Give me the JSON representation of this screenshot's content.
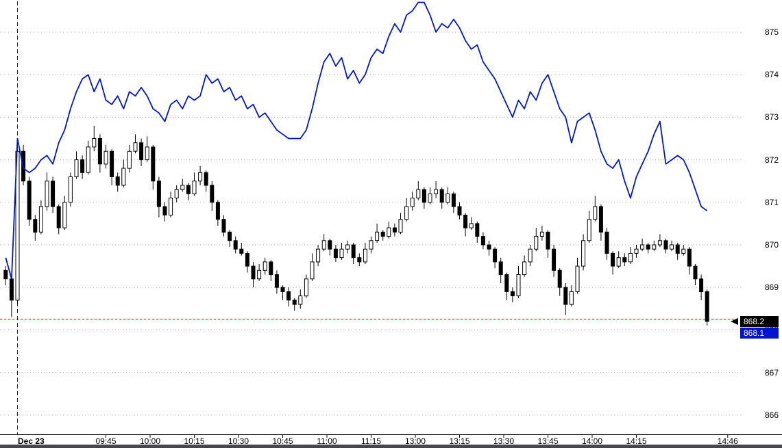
{
  "chart_data": {
    "type": "candlestick",
    "title": "",
    "x_axis": {
      "date_label": "Dec 23",
      "tick_labels": [
        "09:45",
        "10:00",
        "10:15",
        "10:30",
        "10:45",
        "11:00",
        "11:15",
        "13:00",
        "13:15",
        "13:30",
        "13:45",
        "14:00",
        "14:15",
        "14:46"
      ],
      "start_time": "09:10",
      "session_open_time": "09:15",
      "midday_break": [
        "11:30",
        "13:00"
      ]
    },
    "y_axis": {
      "tick_labels": [
        875,
        874,
        873,
        872,
        871,
        870,
        869,
        868,
        867,
        866
      ],
      "min": 865.5,
      "max": 875.8
    },
    "grid": true,
    "bar_interval_minutes": 2,
    "reference_dashed_price": 868.25,
    "quote": {
      "last": "868.2",
      "secondary": "868.1"
    },
    "colors": {
      "line_series": "#0018cc",
      "candle_up": "#ffffff",
      "candle_down": "#000000",
      "reference_line": "#e00000",
      "last_tag_bg": "#000000",
      "secondary_tag_bg": "#0014cf"
    },
    "series": [
      {
        "name": "candles",
        "type": "ohlc-bars",
        "first_open": 869.4,
        "bars": [
          [
            869.2,
            0.1,
            0.15
          ],
          [
            868.7,
            0.05,
            0.4
          ],
          [
            872.2,
            0.2,
            0.1
          ],
          [
            871.5,
            0.15,
            0.1
          ],
          [
            870.6,
            0.1,
            0.15
          ],
          [
            870.3,
            0.1,
            0.2
          ],
          [
            870.9,
            0.15,
            0.05
          ],
          [
            871.5,
            0.2,
            0.1
          ],
          [
            870.9,
            0.1,
            0.15
          ],
          [
            870.4,
            0.05,
            0.15
          ],
          [
            871.0,
            0.15,
            0.05
          ],
          [
            871.6,
            0.1,
            0.1
          ],
          [
            872.0,
            0.2,
            0.05
          ],
          [
            871.7,
            0.1,
            0.15
          ],
          [
            872.3,
            0.15,
            0.05
          ],
          [
            872.5,
            0.3,
            0.1
          ],
          [
            871.9,
            0.1,
            0.2
          ],
          [
            872.2,
            0.15,
            0.1
          ],
          [
            871.6,
            0.05,
            0.2
          ],
          [
            871.4,
            0.1,
            0.15
          ],
          [
            871.8,
            0.2,
            0.05
          ],
          [
            872.2,
            0.15,
            0.1
          ],
          [
            872.4,
            0.2,
            0.05
          ],
          [
            872.0,
            0.1,
            0.15
          ],
          [
            872.3,
            0.25,
            0.05
          ],
          [
            871.5,
            0.05,
            0.2
          ],
          [
            870.9,
            0.1,
            0.25
          ],
          [
            870.7,
            0.1,
            0.15
          ],
          [
            871.1,
            0.15,
            0.05
          ],
          [
            871.3,
            0.1,
            0.1
          ],
          [
            871.4,
            0.15,
            0.05
          ],
          [
            871.2,
            0.05,
            0.15
          ],
          [
            871.5,
            0.2,
            0.05
          ],
          [
            871.7,
            0.15,
            0.1
          ],
          [
            871.4,
            0.05,
            0.15
          ],
          [
            871.0,
            0.1,
            0.2
          ],
          [
            870.6,
            0.05,
            0.15
          ],
          [
            870.3,
            0.1,
            0.1
          ],
          [
            870.1,
            0.05,
            0.15
          ],
          [
            869.9,
            0.1,
            0.1
          ],
          [
            869.8,
            0.15,
            0.05
          ],
          [
            869.5,
            0.05,
            0.15
          ],
          [
            869.2,
            0.1,
            0.2
          ],
          [
            869.4,
            0.15,
            0.05
          ],
          [
            869.6,
            0.1,
            0.1
          ],
          [
            869.3,
            0.05,
            0.15
          ],
          [
            869.0,
            0.1,
            0.15
          ],
          [
            868.9,
            0.05,
            0.2
          ],
          [
            868.7,
            0.1,
            0.15
          ],
          [
            868.6,
            0.05,
            0.15
          ],
          [
            868.8,
            0.15,
            0.1
          ],
          [
            869.2,
            0.1,
            0.05
          ],
          [
            869.6,
            0.2,
            0.05
          ],
          [
            869.9,
            0.1,
            0.1
          ],
          [
            870.1,
            0.15,
            0.05
          ],
          [
            869.9,
            0.05,
            0.15
          ],
          [
            869.7,
            0.1,
            0.1
          ],
          [
            869.9,
            0.15,
            0.05
          ],
          [
            870.0,
            0.1,
            0.1
          ],
          [
            869.7,
            0.05,
            0.15
          ],
          [
            869.6,
            0.1,
            0.1
          ],
          [
            869.9,
            0.15,
            0.05
          ],
          [
            870.1,
            0.1,
            0.1
          ],
          [
            870.3,
            0.2,
            0.05
          ],
          [
            870.2,
            0.05,
            0.1
          ],
          [
            870.4,
            0.15,
            0.05
          ],
          [
            870.3,
            0.1,
            0.1
          ],
          [
            870.6,
            0.15,
            0.05
          ],
          [
            870.9,
            0.2,
            0.05
          ],
          [
            871.1,
            0.15,
            0.1
          ],
          [
            871.3,
            0.2,
            0.05
          ],
          [
            871.0,
            0.05,
            0.15
          ],
          [
            871.2,
            0.15,
            0.05
          ],
          [
            871.3,
            0.2,
            0.1
          ],
          [
            871.0,
            0.05,
            0.15
          ],
          [
            871.2,
            0.15,
            0.05
          ],
          [
            870.9,
            0.05,
            0.15
          ],
          [
            870.7,
            0.1,
            0.1
          ],
          [
            870.4,
            0.05,
            0.2
          ],
          [
            870.5,
            0.15,
            0.05
          ],
          [
            870.2,
            0.05,
            0.15
          ],
          [
            870.0,
            0.1,
            0.1
          ],
          [
            869.9,
            0.1,
            0.15
          ],
          [
            869.6,
            0.05,
            0.15
          ],
          [
            869.3,
            0.1,
            0.2
          ],
          [
            868.9,
            0.05,
            0.2
          ],
          [
            868.8,
            0.1,
            0.15
          ],
          [
            869.3,
            0.2,
            0.05
          ],
          [
            869.6,
            0.15,
            0.05
          ],
          [
            869.9,
            0.1,
            0.1
          ],
          [
            870.2,
            0.2,
            0.05
          ],
          [
            870.3,
            0.15,
            0.1
          ],
          [
            869.9,
            0.05,
            0.2
          ],
          [
            869.4,
            0.1,
            0.15
          ],
          [
            869.0,
            0.05,
            0.2
          ],
          [
            868.6,
            0.1,
            0.25
          ],
          [
            868.9,
            0.15,
            0.05
          ],
          [
            869.5,
            0.2,
            0.05
          ],
          [
            870.1,
            0.15,
            0.1
          ],
          [
            870.6,
            0.2,
            0.05
          ],
          [
            870.9,
            0.25,
            0.05
          ],
          [
            870.3,
            0.05,
            0.2
          ],
          [
            869.8,
            0.1,
            0.15
          ],
          [
            869.5,
            0.05,
            0.2
          ],
          [
            869.7,
            0.15,
            0.05
          ],
          [
            869.6,
            0.1,
            0.1
          ],
          [
            869.8,
            0.15,
            0.05
          ],
          [
            869.9,
            0.1,
            0.1
          ],
          [
            870.0,
            0.15,
            0.05
          ],
          [
            869.9,
            0.05,
            0.1
          ],
          [
            870.0,
            0.1,
            0.05
          ],
          [
            870.1,
            0.15,
            0.05
          ],
          [
            869.9,
            0.05,
            0.1
          ],
          [
            870.0,
            0.1,
            0.05
          ],
          [
            869.8,
            0.05,
            0.15
          ],
          [
            869.9,
            0.1,
            0.05
          ],
          [
            869.5,
            0.05,
            0.2
          ],
          [
            869.2,
            0.05,
            0.15
          ],
          [
            868.9,
            0.1,
            0.2
          ],
          [
            868.2,
            0.05,
            0.1
          ]
        ]
      },
      {
        "name": "overlay-line",
        "type": "line",
        "values": [
          869.7,
          869.2,
          872.5,
          871.8,
          871.7,
          871.8,
          872.0,
          872.1,
          871.9,
          872.4,
          872.7,
          873.2,
          873.6,
          873.9,
          874.0,
          873.6,
          873.9,
          873.4,
          873.3,
          873.5,
          873.2,
          873.6,
          873.5,
          873.7,
          873.5,
          873.2,
          873.1,
          872.9,
          873.3,
          873.4,
          873.2,
          873.5,
          873.4,
          873.5,
          874.0,
          873.8,
          873.9,
          873.6,
          873.7,
          873.4,
          873.5,
          873.2,
          873.3,
          873.0,
          873.1,
          872.9,
          872.7,
          872.6,
          872.5,
          872.5,
          872.5,
          872.7,
          873.2,
          873.8,
          874.3,
          874.5,
          874.2,
          874.4,
          873.9,
          874.1,
          873.8,
          874.0,
          874.4,
          874.6,
          874.5,
          874.9,
          875.2,
          875.0,
          875.4,
          875.5,
          875.7,
          875.7,
          875.4,
          875.0,
          875.2,
          875.1,
          875.3,
          875.1,
          874.8,
          874.6,
          874.7,
          874.3,
          874.1,
          873.9,
          873.6,
          873.3,
          873.0,
          873.4,
          873.2,
          873.6,
          873.4,
          873.8,
          874.0,
          873.6,
          873.2,
          873.0,
          872.4,
          872.9,
          873.0,
          873.1,
          872.7,
          872.2,
          871.9,
          871.8,
          872.0,
          871.5,
          871.1,
          871.6,
          871.9,
          872.2,
          872.6,
          872.9,
          871.9,
          872.0,
          872.1,
          872.0,
          871.7,
          871.3,
          870.9,
          870.8
        ]
      }
    ]
  }
}
